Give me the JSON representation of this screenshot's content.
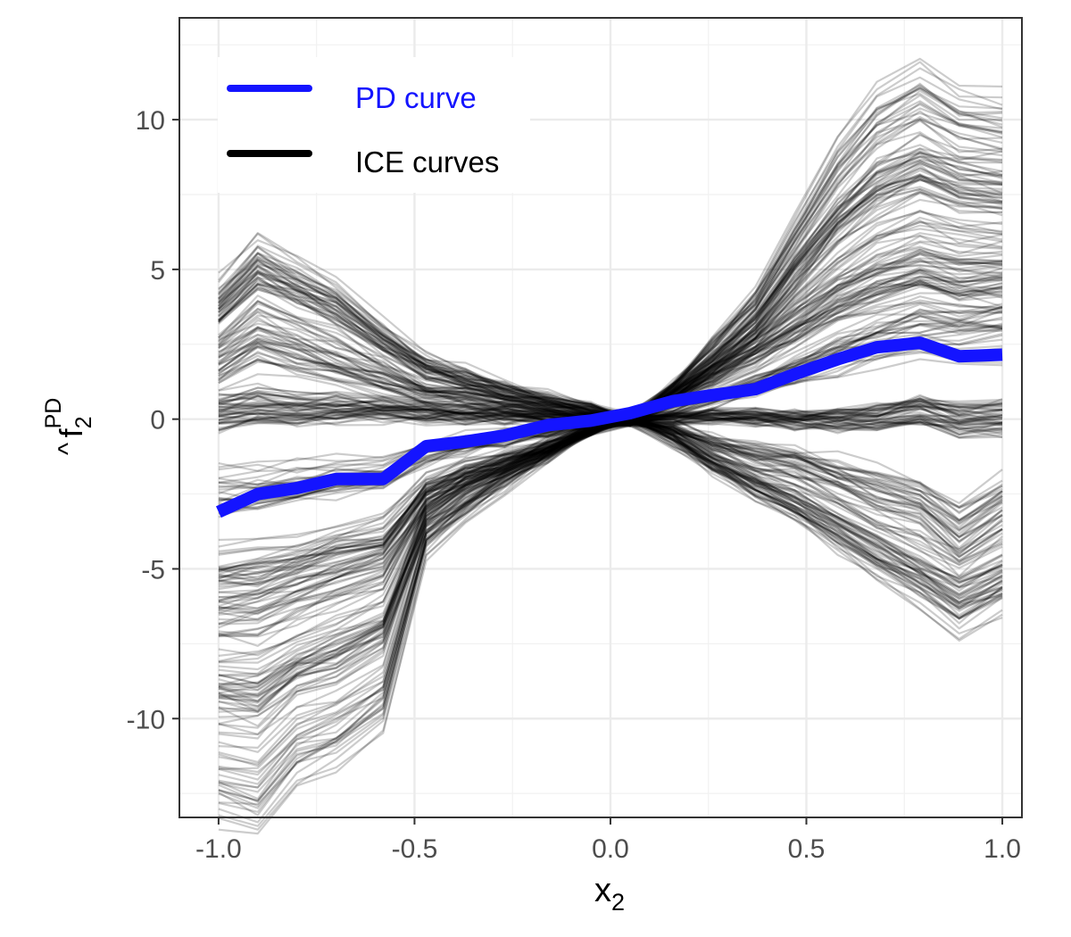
{
  "chart_data": {
    "type": "line",
    "title": "",
    "xlabel": {
      "main": "x",
      "sub": "2"
    },
    "ylabel": {
      "hat": "^",
      "main": "f",
      "sub": "2",
      "sup": "PD"
    },
    "xlim": [
      -1.1,
      1.05
    ],
    "ylim": [
      -13.3,
      13.4
    ],
    "x_ticks": [
      -1.0,
      -0.5,
      0.0,
      0.5,
      1.0
    ],
    "x_tick_labels": [
      "-1.0",
      "-0.5",
      "0.0",
      "0.5",
      "1.0"
    ],
    "y_ticks": [
      -10,
      -5,
      0,
      5,
      10
    ],
    "y_tick_labels": [
      "-10",
      "-5",
      "0",
      "5",
      "10"
    ],
    "grid": true,
    "legend_position": "top-left",
    "x": [
      -1.0,
      -0.9,
      -0.8,
      -0.7,
      -0.58,
      -0.47,
      -0.37,
      -0.27,
      -0.16,
      -0.05,
      0.05,
      0.16,
      0.26,
      0.37,
      0.47,
      0.58,
      0.68,
      0.79,
      0.89,
      1.0
    ],
    "series": [
      {
        "name": "PD curve",
        "color": "#1414ff",
        "values": [
          -3.1,
          -2.5,
          -2.3,
          -2.0,
          -2.0,
          -0.9,
          -0.75,
          -0.55,
          -0.2,
          -0.05,
          0.2,
          0.6,
          0.8,
          1.0,
          1.5,
          2.0,
          2.4,
          2.55,
          2.1,
          2.15
        ]
      },
      {
        "name": "ICE curves",
        "color": "#000000",
        "count": 300,
        "groups": [
          {
            "share": 0.18,
            "values": [
              3.5,
              4.8,
              4.2,
              3.6,
              2.5,
              1.6,
              1.3,
              0.9,
              0.6,
              0.3,
              0.0,
              -0.6,
              -1.4,
              -2.1,
              -2.7,
              -3.5,
              -4.3,
              -5.0,
              -5.8,
              -5.1
            ]
          },
          {
            "share": 0.17,
            "values": [
              0.2,
              0.4,
              0.3,
              0.35,
              0.3,
              0.2,
              0.15,
              0.1,
              0.05,
              0.0,
              0.0,
              0.05,
              0.1,
              0.05,
              0.0,
              0.0,
              0.1,
              0.35,
              0.0,
              0.1
            ]
          },
          {
            "share": 0.17,
            "values": [
              -5.5,
              -5.4,
              -5.0,
              -4.6,
              -4.2,
              -2.4,
              -1.8,
              -1.4,
              -0.9,
              -0.3,
              0.0,
              0.7,
              1.4,
              2.2,
              3.0,
              3.9,
              4.5,
              4.9,
              4.6,
              4.6
            ]
          },
          {
            "share": 0.14,
            "values": [
              -11.0,
              -11.3,
              -10.0,
              -9.5,
              -8.5,
              -3.6,
              -2.6,
              -1.9,
              -1.1,
              -0.3,
              0.0,
              1.0,
              2.2,
              3.5,
              5.5,
              7.6,
              9.0,
              9.7,
              9.0,
              8.8
            ]
          },
          {
            "share": 0.12,
            "values": [
              -8.0,
              -8.1,
              -7.3,
              -6.8,
              -6.2,
              -3.1,
              -2.3,
              -1.6,
              -1.0,
              -0.3,
              0.0,
              0.9,
              1.8,
              2.9,
              4.5,
              6.0,
              7.0,
              7.6,
              7.1,
              7.0
            ]
          },
          {
            "share": 0.12,
            "values": [
              1.8,
              2.6,
              2.2,
              1.8,
              1.3,
              0.8,
              0.7,
              0.5,
              0.3,
              0.1,
              0.0,
              -0.3,
              -0.8,
              -1.2,
              -1.4,
              -1.9,
              -2.4,
              -2.8,
              -3.8,
              -2.8
            ]
          },
          {
            "share": 0.1,
            "values": [
              -2.5,
              -2.4,
              -2.2,
              -2.0,
              -1.9,
              -1.1,
              -0.85,
              -0.65,
              -0.4,
              -0.1,
              0.0,
              0.35,
              0.7,
              1.1,
              1.6,
              2.2,
              2.6,
              3.0,
              2.9,
              3.0
            ]
          }
        ]
      }
    ]
  }
}
